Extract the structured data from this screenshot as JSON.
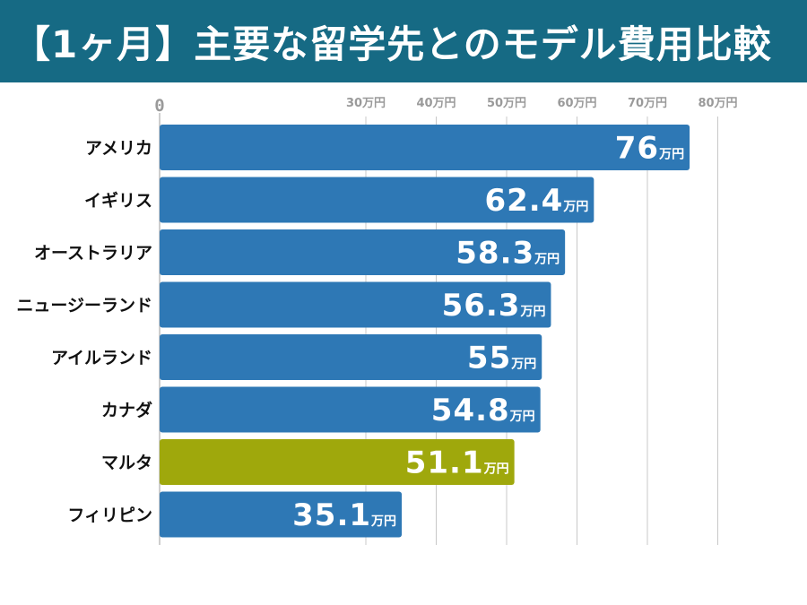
{
  "title": "【1ヶ月】主要な留学先とのモデル費用比較",
  "chart_data": {
    "type": "bar",
    "orientation": "horizontal",
    "title": "【1ヶ月】主要な留学先とのモデル費用比較",
    "unit": "万円",
    "axis_zero_label": "0",
    "ticks": [
      30,
      40,
      50,
      60,
      70,
      80
    ],
    "xlim": [
      0,
      80
    ],
    "axis_break": "0〜30 compressed",
    "categories": [
      "アメリカ",
      "イギリス",
      "オーストラリア",
      "ニュージーランド",
      "アイルランド",
      "カナダ",
      "マルタ",
      "フィリピン"
    ],
    "values": [
      76,
      62.4,
      58.3,
      56.3,
      55,
      54.8,
      51.1,
      35.1
    ],
    "value_labels": [
      "76",
      "62.4",
      "58.3",
      "56.3",
      "55",
      "54.8",
      "51.1",
      "35.1"
    ],
    "highlight": "マルタ",
    "colors": {
      "bar": "#2e78b5",
      "highlight": "#9fa80c",
      "header": "#166a84",
      "grid": "#c8c8c8",
      "tick_text": "#9a9a9a"
    }
  }
}
